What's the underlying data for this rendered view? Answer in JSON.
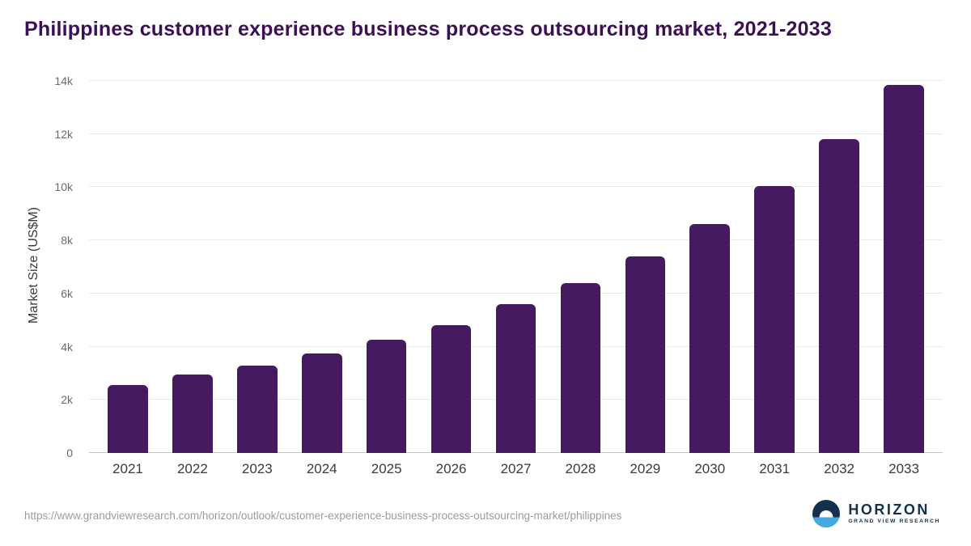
{
  "title": "Philippines customer experience business process outsourcing market, 2021-2033",
  "chart_data": {
    "type": "bar",
    "categories": [
      "2021",
      "2022",
      "2023",
      "2024",
      "2025",
      "2026",
      "2027",
      "2028",
      "2029",
      "2030",
      "2031",
      "2032",
      "2033"
    ],
    "values": [
      2550,
      2950,
      3300,
      3750,
      4250,
      4800,
      5600,
      6400,
      7400,
      8600,
      10050,
      11800,
      13850
    ],
    "title": "Philippines customer experience business process outsourcing market, 2021-2033",
    "xlabel": "",
    "ylabel": "Market Size (US$M)",
    "ylim": [
      0,
      14000
    ],
    "yticks": [
      0,
      2000,
      4000,
      6000,
      8000,
      10000,
      12000,
      14000
    ],
    "ytick_labels": [
      "0",
      "2k",
      "4k",
      "6k",
      "8k",
      "10k",
      "12k",
      "14k"
    ],
    "bar_color": "#461a5e",
    "grid": true,
    "legend": false
  },
  "footer": {
    "source_url": "https://www.grandviewresearch.com/horizon/outlook/customer-experience-business-process-outsourcing-market/philippines",
    "logo_title": "HORIZON",
    "logo_subtitle": "GRAND VIEW RESEARCH"
  },
  "colors": {
    "title": "#3d1054",
    "bar": "#461a5e",
    "background": "#ffffff",
    "logo_navy": "#14304f",
    "logo_blue": "#45aadd"
  }
}
